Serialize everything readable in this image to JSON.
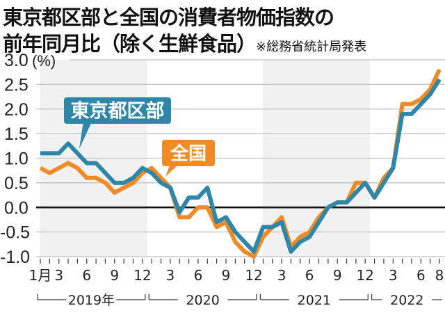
{
  "title_line1": "東京都区部と全国の消費者物価指数の",
  "title_line2": "前年同月比（除く生鮮食品）",
  "source_note": "※総務省統計局発表",
  "chart_data": {
    "type": "line",
    "ylabel": "(%)",
    "ylim": [
      -1.0,
      3.0
    ],
    "yticks": [
      "3.0",
      "2.5",
      "2.0",
      "1.5",
      "1.0",
      "0.5",
      "0.0",
      "-0.5",
      "-1.0"
    ],
    "grid": true,
    "xtick_labels": [
      "1月",
      "3",
      "6",
      "9",
      "12",
      "3",
      "6",
      "9",
      "12",
      "3",
      "6",
      "9",
      "12",
      "3",
      "6",
      "8"
    ],
    "xtick_month_index": [
      0,
      2,
      5,
      8,
      11,
      14,
      17,
      20,
      23,
      26,
      29,
      32,
      35,
      38,
      41,
      43
    ],
    "years": [
      "2019年",
      "2020",
      "2021",
      "2022"
    ],
    "shaded_years": [
      "2019年",
      "2021"
    ],
    "x_range": [
      "2019-01",
      "2022-08"
    ],
    "series": [
      {
        "name": "全国",
        "color": "#F08A24",
        "values": [
          0.8,
          0.7,
          0.8,
          0.9,
          0.8,
          0.6,
          0.6,
          0.5,
          0.3,
          0.4,
          0.5,
          0.7,
          0.8,
          0.6,
          0.4,
          -0.2,
          -0.2,
          0.0,
          0.0,
          -0.4,
          -0.3,
          -0.7,
          -0.9,
          -1.0,
          -0.6,
          -0.4,
          -0.2,
          -0.8,
          -0.6,
          -0.5,
          -0.2,
          0.0,
          0.1,
          0.1,
          0.5,
          0.5,
          0.2,
          0.6,
          0.8,
          2.1,
          2.1,
          2.2,
          2.4,
          2.8
        ]
      },
      {
        "name": "東京都区部",
        "color": "#2E86A8",
        "values": [
          1.1,
          1.1,
          1.1,
          1.3,
          1.1,
          0.9,
          0.9,
          0.7,
          0.5,
          0.5,
          0.6,
          0.8,
          0.7,
          0.5,
          0.4,
          -0.1,
          0.2,
          0.2,
          0.4,
          -0.3,
          -0.2,
          -0.5,
          -0.7,
          -0.9,
          -0.4,
          -0.4,
          -0.3,
          -0.9,
          -0.7,
          -0.6,
          -0.3,
          0.0,
          0.1,
          0.1,
          0.3,
          0.5,
          0.2,
          0.5,
          0.8,
          1.9,
          1.9,
          2.1,
          2.3,
          2.6
        ]
      }
    ]
  }
}
